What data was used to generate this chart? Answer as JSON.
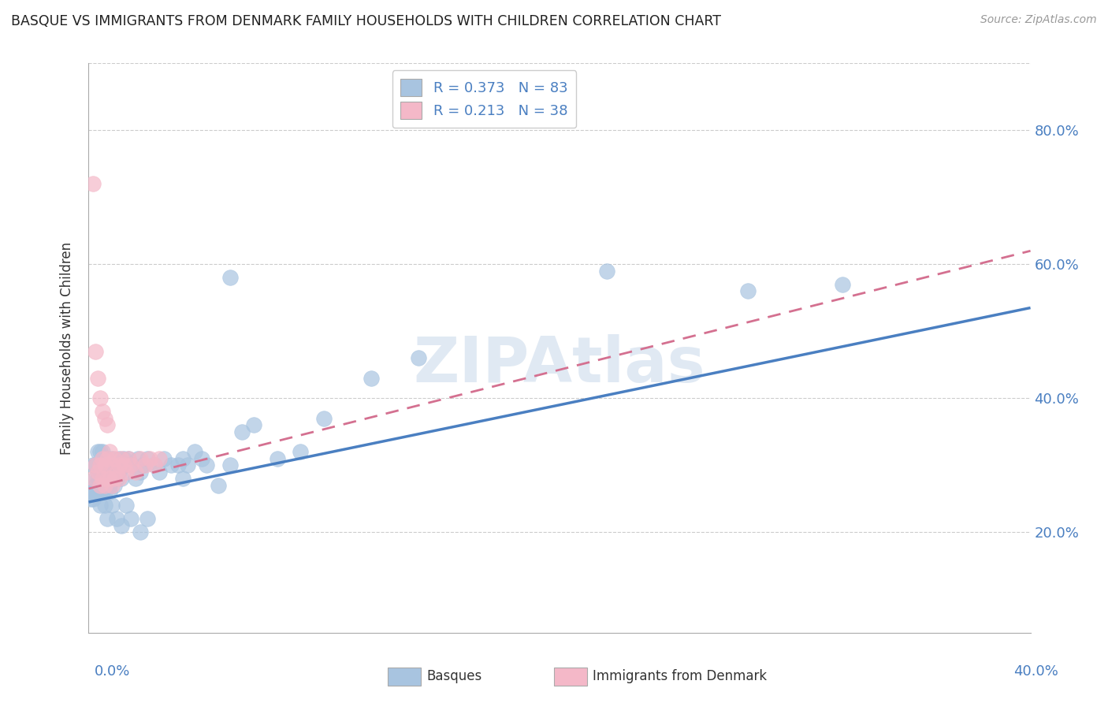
{
  "title": "BASQUE VS IMMIGRANTS FROM DENMARK FAMILY HOUSEHOLDS WITH CHILDREN CORRELATION CHART",
  "source": "Source: ZipAtlas.com",
  "ylabel": "Family Households with Children",
  "watermark": "ZIPAtlas",
  "basque_R": 0.373,
  "basque_N": 83,
  "denmark_R": 0.213,
  "denmark_N": 38,
  "basque_color": "#a8c4e0",
  "denmark_color": "#f4b8c8",
  "basque_line_color": "#4a7fc1",
  "denmark_line_color": "#d47090",
  "xlim": [
    0.0,
    0.4
  ],
  "ylim": [
    0.05,
    0.9
  ],
  "ytick_vals": [
    0.2,
    0.4,
    0.6,
    0.8
  ],
  "ytick_labels": [
    "20.0%",
    "40.0%",
    "60.0%",
    "80.0%"
  ],
  "background_color": "#ffffff",
  "basque_x": [
    0.002,
    0.003,
    0.003,
    0.004,
    0.004,
    0.005,
    0.005,
    0.005,
    0.006,
    0.006,
    0.006,
    0.007,
    0.007,
    0.007,
    0.008,
    0.008,
    0.008,
    0.009,
    0.009,
    0.009,
    0.01,
    0.01,
    0.01,
    0.011,
    0.011,
    0.012,
    0.012,
    0.013,
    0.013,
    0.014,
    0.014,
    0.015,
    0.016,
    0.017,
    0.018,
    0.02,
    0.021,
    0.022,
    0.023,
    0.025,
    0.028,
    0.03,
    0.032,
    0.035,
    0.038,
    0.04,
    0.042,
    0.045,
    0.048,
    0.05,
    0.055,
    0.06,
    0.065,
    0.07,
    0.08,
    0.09,
    0.1,
    0.12,
    0.14,
    0.04,
    0.06,
    0.025,
    0.022,
    0.018,
    0.016,
    0.014,
    0.012,
    0.01,
    0.008,
    0.007,
    0.006,
    0.005,
    0.004,
    0.003,
    0.003,
    0.002,
    0.002,
    0.001,
    0.001,
    0.28,
    0.32,
    0.22,
    0.0
  ],
  "basque_y": [
    0.3,
    0.26,
    0.3,
    0.28,
    0.32,
    0.26,
    0.29,
    0.32,
    0.27,
    0.3,
    0.32,
    0.27,
    0.29,
    0.26,
    0.28,
    0.31,
    0.27,
    0.29,
    0.27,
    0.26,
    0.3,
    0.28,
    0.31,
    0.29,
    0.27,
    0.3,
    0.28,
    0.31,
    0.29,
    0.3,
    0.28,
    0.31,
    0.3,
    0.31,
    0.3,
    0.28,
    0.31,
    0.29,
    0.3,
    0.31,
    0.3,
    0.29,
    0.31,
    0.3,
    0.3,
    0.31,
    0.3,
    0.32,
    0.31,
    0.3,
    0.27,
    0.3,
    0.35,
    0.36,
    0.31,
    0.32,
    0.37,
    0.43,
    0.46,
    0.28,
    0.58,
    0.22,
    0.2,
    0.22,
    0.24,
    0.21,
    0.22,
    0.24,
    0.22,
    0.24,
    0.26,
    0.24,
    0.26,
    0.28,
    0.27,
    0.26,
    0.25,
    0.25,
    0.26,
    0.56,
    0.57,
    0.59,
    0.26
  ],
  "denmark_x": [
    0.002,
    0.003,
    0.004,
    0.005,
    0.005,
    0.006,
    0.006,
    0.007,
    0.007,
    0.008,
    0.008,
    0.009,
    0.009,
    0.01,
    0.01,
    0.011,
    0.011,
    0.012,
    0.013,
    0.013,
    0.014,
    0.015,
    0.016,
    0.017,
    0.018,
    0.02,
    0.022,
    0.024,
    0.026,
    0.028,
    0.03,
    0.002,
    0.003,
    0.004,
    0.005,
    0.006,
    0.007,
    0.008
  ],
  "denmark_y": [
    0.28,
    0.3,
    0.29,
    0.27,
    0.3,
    0.28,
    0.31,
    0.27,
    0.3,
    0.28,
    0.31,
    0.28,
    0.32,
    0.27,
    0.3,
    0.28,
    0.31,
    0.29,
    0.3,
    0.28,
    0.31,
    0.3,
    0.29,
    0.31,
    0.3,
    0.29,
    0.31,
    0.3,
    0.31,
    0.3,
    0.31,
    0.72,
    0.47,
    0.43,
    0.4,
    0.38,
    0.37,
    0.36
  ],
  "basque_line_x": [
    0.0,
    0.4
  ],
  "basque_line_y": [
    0.245,
    0.535
  ],
  "denmark_line_x": [
    0.0,
    0.4
  ],
  "denmark_line_y": [
    0.265,
    0.62
  ]
}
